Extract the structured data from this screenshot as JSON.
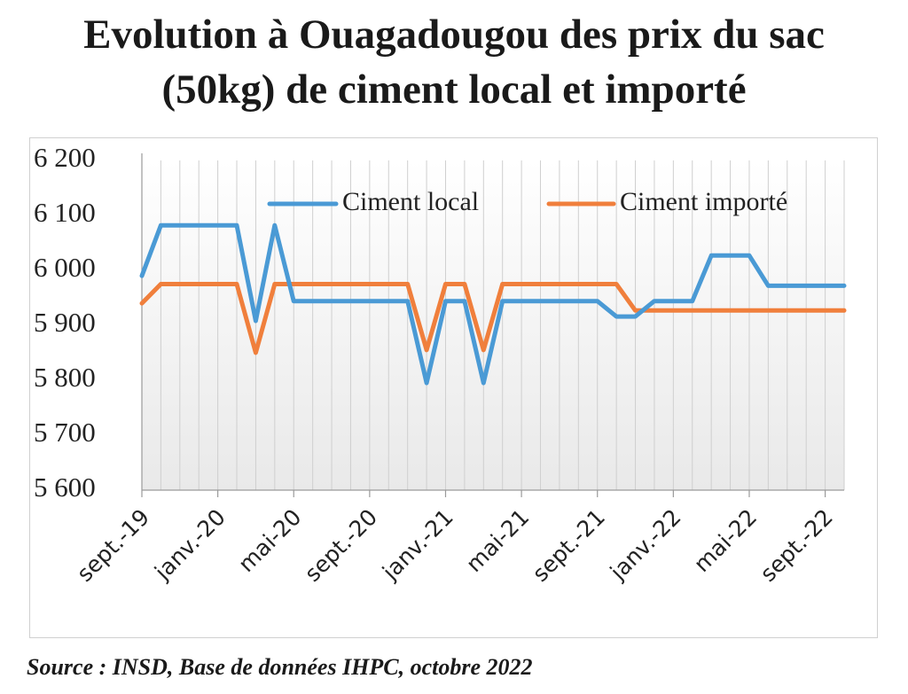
{
  "chart_data": {
    "type": "line",
    "title": [
      "Evolution à Ouagadougou des prix du sac",
      "(50kg) de ciment local et importé"
    ],
    "xlabel": "",
    "ylabel": "",
    "ylim": [
      5600,
      6200
    ],
    "yticks": [
      "5 600",
      "5 700",
      "5 800",
      "5 900",
      "6 000",
      "6 100",
      "6 200"
    ],
    "ytick_values": [
      5600,
      5700,
      5800,
      5900,
      6000,
      6100,
      6200
    ],
    "x_tick_labels": [
      "sept.-19",
      "janv.-20",
      "mai-20",
      "sept.-20",
      "janv.-21",
      "mai-21",
      "sept.-21",
      "janv.-22",
      "mai-22",
      "sept.-22"
    ],
    "x_tick_every": 4,
    "legend_position": "top",
    "series": [
      {
        "name": "Ciment local",
        "color": "#4a9ad5",
        "values": [
          5990,
          6082,
          6082,
          6082,
          6082,
          6082,
          5908,
          6082,
          5944,
          5944,
          5944,
          5944,
          5944,
          5944,
          5944,
          5795,
          5944,
          5944,
          5795,
          5944,
          5944,
          5944,
          5944,
          5944,
          5944,
          5916,
          5916,
          5944,
          5944,
          5944,
          6027,
          6027,
          6027,
          5972,
          5972,
          5972,
          5972,
          5972
        ]
      },
      {
        "name": "Ciment importé",
        "color": "#f07f3c",
        "values": [
          5940,
          5975,
          5975,
          5975,
          5975,
          5975,
          5850,
          5975,
          5975,
          5975,
          5975,
          5975,
          5975,
          5975,
          5975,
          5855,
          5975,
          5975,
          5855,
          5975,
          5975,
          5975,
          5975,
          5975,
          5975,
          5975,
          5927,
          5927,
          5927,
          5927,
          5927,
          5927,
          5927,
          5927,
          5927,
          5927,
          5927,
          5927
        ]
      }
    ]
  },
  "source": "Source : INSD, Base de données IHPC, octobre 2022"
}
